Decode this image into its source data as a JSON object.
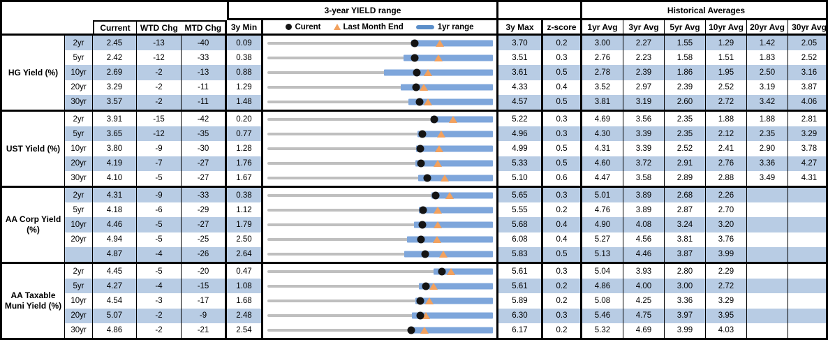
{
  "header": {
    "range_title": "3-year YIELD range",
    "hist_title": "Historical Averages",
    "col_current": "Current",
    "col_wtd": "WTD Chg",
    "col_mtd": "MTD Chg",
    "col_min": "3y Min",
    "col_max": "3y Max",
    "col_z": "z-score",
    "avg_cols": [
      "1yr Avg",
      "3yr Avg",
      "5yr Avg",
      "10yr Avg",
      "20yr Avg",
      "30yr Avg"
    ]
  },
  "legend": {
    "current_label": "Curent",
    "last_month_label": "Last Month End",
    "range_label": "1yr range"
  },
  "colors": {
    "band": "#b8cce4",
    "bar_1yr": "#7ea6db",
    "track": "#bfbfbf",
    "marker_current": "#141414",
    "marker_last_month": "#f2a15e",
    "border": "#000000"
  },
  "chart_data": {
    "type": "table",
    "note": "bullet/range chart per row: gray track spans 3y Min..3y Max, blue bar is 1yr range, black dot = current, orange triangle = last month end",
    "columns": [
      "tenor",
      "current",
      "wtd_chg",
      "mtd_chg",
      "min_3y",
      "range_1yr_lo",
      "range_1yr_hi",
      "last_month_end",
      "max_3y",
      "z_score",
      "1yr_avg",
      "3yr_avg",
      "5yr_avg",
      "10yr_avg",
      "20yr_avg",
      "30yr_avg"
    ],
    "groups": [
      {
        "name": "HG Yield (%)",
        "rows": [
          {
            "tenor": "2yr",
            "current": "2.45",
            "wtd": "-13",
            "mtd": "-40",
            "min": "0.09",
            "max": "3.70",
            "z": "0.2",
            "lme": 2.85,
            "bar_lo": 2.39,
            "bar_hi": 3.7,
            "avgs": [
              "3.00",
              "2.27",
              "1.55",
              "1.29",
              "1.42",
              "2.05"
            ]
          },
          {
            "tenor": "5yr",
            "current": "2.42",
            "wtd": "-12",
            "mtd": "-33",
            "min": "0.38",
            "max": "3.51",
            "z": "0.3",
            "lme": 2.75,
            "bar_lo": 2.27,
            "bar_hi": 3.51,
            "avgs": [
              "2.76",
              "2.23",
              "1.58",
              "1.51",
              "1.83",
              "2.52"
            ]
          },
          {
            "tenor": "10yr",
            "current": "2.69",
            "wtd": "-2",
            "mtd": "-13",
            "min": "0.88",
            "max": "3.61",
            "z": "0.5",
            "lme": 2.82,
            "bar_lo": 2.29,
            "bar_hi": 3.61,
            "avgs": [
              "2.78",
              "2.39",
              "1.86",
              "1.95",
              "2.50",
              "3.16"
            ]
          },
          {
            "tenor": "20yr",
            "current": "3.29",
            "wtd": "-2",
            "mtd": "-11",
            "min": "1.29",
            "max": "4.33",
            "z": "0.4",
            "lme": 3.4,
            "bar_lo": 3.09,
            "bar_hi": 4.33,
            "avgs": [
              "3.52",
              "2.97",
              "2.39",
              "2.52",
              "3.19",
              "3.87"
            ]
          },
          {
            "tenor": "30yr",
            "current": "3.57",
            "wtd": "-2",
            "mtd": "-11",
            "min": "1.48",
            "max": "4.57",
            "z": "0.5",
            "lme": 3.68,
            "bar_lo": 3.41,
            "bar_hi": 4.57,
            "avgs": [
              "3.81",
              "3.19",
              "2.60",
              "2.72",
              "3.42",
              "4.06"
            ]
          }
        ]
      },
      {
        "name": "UST Yield (%)",
        "rows": [
          {
            "tenor": "2yr",
            "current": "3.91",
            "wtd": "-15",
            "mtd": "-42",
            "min": "0.20",
            "max": "5.22",
            "z": "0.3",
            "lme": 4.33,
            "bar_lo": 3.83,
            "bar_hi": 5.22,
            "avgs": [
              "4.69",
              "3.56",
              "2.35",
              "1.88",
              "1.88",
              "2.81"
            ]
          },
          {
            "tenor": "5yr",
            "current": "3.65",
            "wtd": "-12",
            "mtd": "-35",
            "min": "0.77",
            "max": "4.96",
            "z": "0.3",
            "lme": 4.0,
            "bar_lo": 3.56,
            "bar_hi": 4.96,
            "avgs": [
              "4.30",
              "3.39",
              "2.35",
              "2.12",
              "2.35",
              "3.29"
            ]
          },
          {
            "tenor": "10yr",
            "current": "3.80",
            "wtd": "-9",
            "mtd": "-30",
            "min": "1.28",
            "max": "4.99",
            "z": "0.5",
            "lme": 4.1,
            "bar_lo": 3.73,
            "bar_hi": 4.99,
            "avgs": [
              "4.31",
              "3.39",
              "2.52",
              "2.41",
              "2.90",
              "3.78"
            ]
          },
          {
            "tenor": "20yr",
            "current": "4.19",
            "wtd": "-7",
            "mtd": "-27",
            "min": "1.76",
            "max": "5.33",
            "z": "0.5",
            "lme": 4.46,
            "bar_lo": 4.1,
            "bar_hi": 5.33,
            "avgs": [
              "4.60",
              "3.72",
              "2.91",
              "2.76",
              "3.36",
              "4.27"
            ]
          },
          {
            "tenor": "30yr",
            "current": "4.10",
            "wtd": "-5",
            "mtd": "-27",
            "min": "1.67",
            "max": "5.10",
            "z": "0.6",
            "lme": 4.37,
            "bar_lo": 3.96,
            "bar_hi": 5.1,
            "avgs": [
              "4.47",
              "3.58",
              "2.89",
              "2.88",
              "3.49",
              "4.31"
            ]
          }
        ]
      },
      {
        "name": "AA Corp Yield (%)",
        "rows": [
          {
            "tenor": "2yr",
            "current": "4.31",
            "wtd": "-9",
            "mtd": "-33",
            "min": "0.38",
            "max": "5.65",
            "z": "0.3",
            "lme": 4.64,
            "bar_lo": 4.21,
            "bar_hi": 5.65,
            "avgs": [
              "5.01",
              "3.89",
              "2.68",
              "2.26",
              "",
              ""
            ]
          },
          {
            "tenor": "5yr",
            "current": "4.18",
            "wtd": "-6",
            "mtd": "-29",
            "min": "1.12",
            "max": "5.55",
            "z": "0.2",
            "lme": 4.47,
            "bar_lo": 4.1,
            "bar_hi": 5.55,
            "avgs": [
              "4.76",
              "3.89",
              "2.87",
              "2.70",
              "",
              ""
            ]
          },
          {
            "tenor": "10yr",
            "current": "4.46",
            "wtd": "-5",
            "mtd": "-27",
            "min": "1.79",
            "max": "5.68",
            "z": "0.4",
            "lme": 4.73,
            "bar_lo": 4.32,
            "bar_hi": 5.68,
            "avgs": [
              "4.90",
              "4.08",
              "3.24",
              "3.20",
              "",
              ""
            ]
          },
          {
            "tenor": "20yr",
            "current": "4.94",
            "wtd": "-5",
            "mtd": "-25",
            "min": "2.50",
            "max": "6.08",
            "z": "0.4",
            "lme": 5.19,
            "bar_lo": 4.72,
            "bar_hi": 6.08,
            "avgs": [
              "5.27",
              "4.56",
              "3.81",
              "3.76",
              "",
              ""
            ]
          },
          {
            "tenor": "",
            "current": "4.87",
            "wtd": "-4",
            "mtd": "-26",
            "min": "2.64",
            "max": "5.83",
            "z": "0.5",
            "lme": 5.13,
            "bar_lo": 4.58,
            "bar_hi": 5.83,
            "avgs": [
              "5.13",
              "4.46",
              "3.87",
              "3.99",
              "",
              ""
            ]
          }
        ]
      },
      {
        "name": "AA Taxable Muni Yield (%)",
        "rows": [
          {
            "tenor": "2yr",
            "current": "4.45",
            "wtd": "-5",
            "mtd": "-20",
            "min": "0.47",
            "max": "5.61",
            "z": "0.3",
            "lme": 4.65,
            "bar_lo": 4.26,
            "bar_hi": 5.61,
            "avgs": [
              "5.04",
              "3.93",
              "2.80",
              "2.29",
              "",
              ""
            ]
          },
          {
            "tenor": "5yr",
            "current": "4.27",
            "wtd": "-4",
            "mtd": "-15",
            "min": "1.08",
            "max": "5.61",
            "z": "0.2",
            "lme": 4.42,
            "bar_lo": 4.13,
            "bar_hi": 5.61,
            "avgs": [
              "4.86",
              "4.00",
              "3.00",
              "2.72",
              "",
              ""
            ]
          },
          {
            "tenor": "10yr",
            "current": "4.54",
            "wtd": "-3",
            "mtd": "-17",
            "min": "1.68",
            "max": "5.89",
            "z": "0.2",
            "lme": 4.71,
            "bar_lo": 4.44,
            "bar_hi": 5.89,
            "avgs": [
              "5.08",
              "4.25",
              "3.36",
              "3.29",
              "",
              ""
            ]
          },
          {
            "tenor": "20yr",
            "current": "5.07",
            "wtd": "-2",
            "mtd": "-9",
            "min": "2.48",
            "max": "6.30",
            "z": "0.3",
            "lme": 5.16,
            "bar_lo": 4.93,
            "bar_hi": 6.3,
            "avgs": [
              "5.46",
              "4.75",
              "3.97",
              "3.95",
              "",
              ""
            ]
          },
          {
            "tenor": "30yr",
            "current": "4.86",
            "wtd": "-2",
            "mtd": "-21",
            "min": "2.54",
            "max": "6.17",
            "z": "0.2",
            "lme": 5.07,
            "bar_lo": 4.82,
            "bar_hi": 6.17,
            "avgs": [
              "5.32",
              "4.69",
              "3.99",
              "4.03",
              "",
              ""
            ]
          }
        ]
      }
    ]
  }
}
